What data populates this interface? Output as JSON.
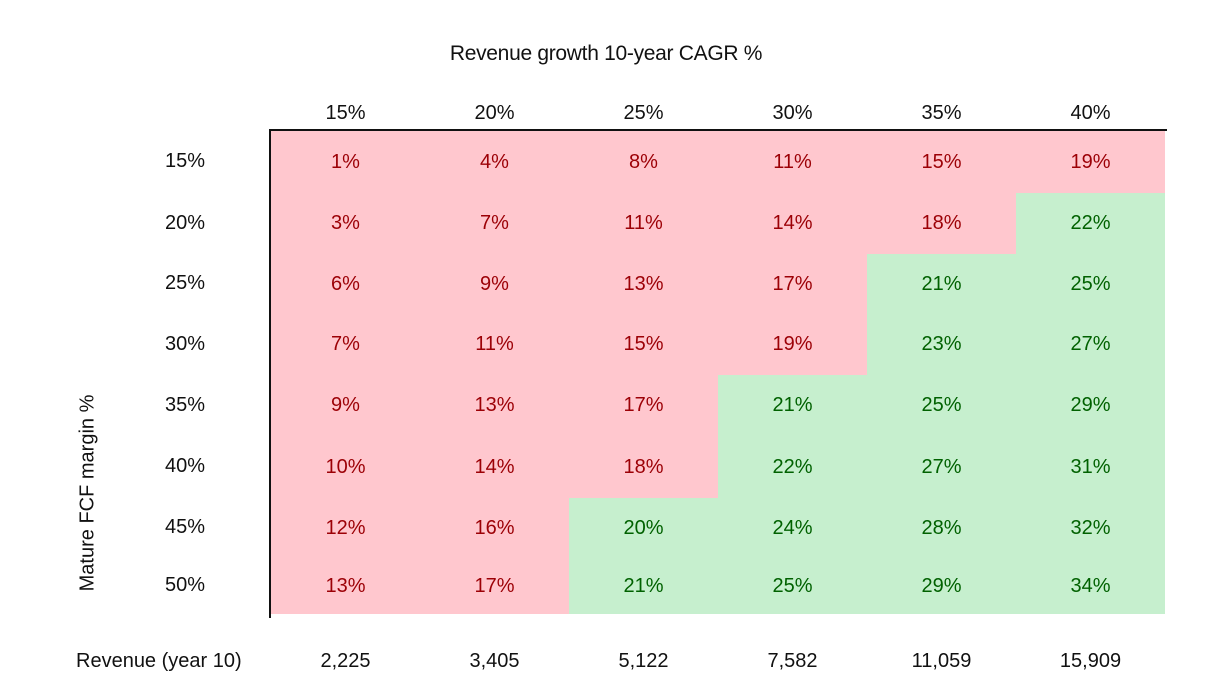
{
  "chart_data": {
    "type": "table",
    "title": "Revenue growth 10-year CAGR %",
    "ylabel": "Mature FCF margin %",
    "columns": [
      "15%",
      "20%",
      "25%",
      "30%",
      "35%",
      "40%"
    ],
    "rows": [
      "15%",
      "20%",
      "25%",
      "30%",
      "35%",
      "40%",
      "45%",
      "50%"
    ],
    "values": [
      [
        "1%",
        "4%",
        "8%",
        "11%",
        "15%",
        "19%"
      ],
      [
        "3%",
        "7%",
        "11%",
        "14%",
        "18%",
        "22%"
      ],
      [
        "6%",
        "9%",
        "13%",
        "17%",
        "21%",
        "25%"
      ],
      [
        "7%",
        "11%",
        "15%",
        "19%",
        "23%",
        "27%"
      ],
      [
        "9%",
        "13%",
        "17%",
        "21%",
        "25%",
        "29%"
      ],
      [
        "10%",
        "14%",
        "18%",
        "22%",
        "27%",
        "31%"
      ],
      [
        "12%",
        "16%",
        "20%",
        "24%",
        "28%",
        "32%"
      ],
      [
        "13%",
        "17%",
        "21%",
        "25%",
        "29%",
        "34%"
      ]
    ],
    "status": [
      [
        "bad",
        "bad",
        "bad",
        "bad",
        "bad",
        "bad"
      ],
      [
        "bad",
        "bad",
        "bad",
        "bad",
        "bad",
        "good"
      ],
      [
        "bad",
        "bad",
        "bad",
        "bad",
        "good",
        "good"
      ],
      [
        "bad",
        "bad",
        "bad",
        "bad",
        "good",
        "good"
      ],
      [
        "bad",
        "bad",
        "bad",
        "good",
        "good",
        "good"
      ],
      [
        "bad",
        "bad",
        "bad",
        "good",
        "good",
        "good"
      ],
      [
        "bad",
        "bad",
        "good",
        "good",
        "good",
        "good"
      ],
      [
        "bad",
        "bad",
        "good",
        "good",
        "good",
        "good"
      ]
    ],
    "colors": {
      "bad_fill": "#ffc7ce",
      "bad_text": "#9c0006",
      "good_fill": "#c6efce",
      "good_text": "#006100"
    },
    "footer_label": "Revenue (year 10)",
    "footer_values": [
      "2,225",
      "3,405",
      "5,122",
      "7,582",
      "11,059",
      "15,909"
    ]
  }
}
